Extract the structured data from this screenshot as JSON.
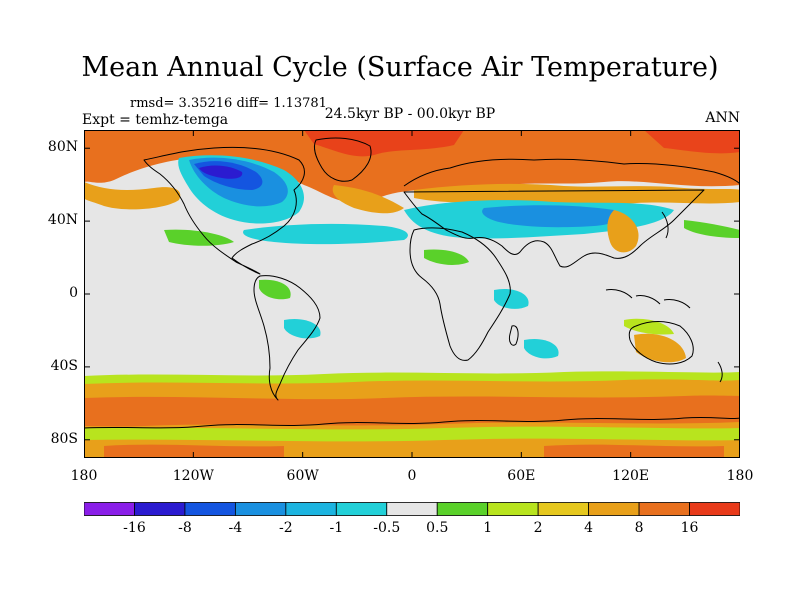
{
  "figure": {
    "title": "Mean Annual Cycle (Surface Air Temperature)",
    "stats": "rmsd= 3.35216 diff= 1.13781",
    "experiment": "Expt = temhz-temga",
    "period": "24.5kyr BP - 00.0kyr BP",
    "season": "ANN"
  },
  "map": {
    "lon_ticks": [
      "180",
      "120W",
      "60W",
      "0",
      "60E",
      "120E",
      "180"
    ],
    "lon_values": [
      -180,
      -120,
      -60,
      0,
      60,
      120,
      180
    ],
    "lat_ticks": [
      "80N",
      "40N",
      "0",
      "40S",
      "80S"
    ],
    "lat_values": [
      80,
      40,
      0,
      -40,
      -80
    ],
    "lat_range": [
      -90,
      90
    ],
    "lon_range": [
      -180,
      180
    ]
  },
  "colorbar": {
    "labels": [
      "-16",
      "-8",
      "-4",
      "-2",
      "-1",
      "-0.5",
      "0.5",
      "1",
      "2",
      "4",
      "8",
      "16"
    ],
    "colors": [
      "#8a1ee8",
      "#2b1bd0",
      "#1455e0",
      "#1a90e0",
      "#1cb4e0",
      "#22d0d8",
      "#e6e6e6",
      "#5ad12a",
      "#b8e41e",
      "#e6c81e",
      "#e8a01a",
      "#e8701e",
      "#e83a1a"
    ]
  },
  "chart_data": {
    "type": "heatmap",
    "title": "Mean Annual Cycle (Surface Air Temperature)",
    "subtitle": "24.5kyr BP - 00.0kyr BP",
    "variable": "Surface Air Temperature difference",
    "contour_levels": [
      -16,
      -8,
      -4,
      -2,
      -1,
      -0.5,
      0.5,
      1,
      2,
      4,
      8,
      16
    ],
    "xlim": [
      -180,
      180
    ],
    "ylim": [
      -90,
      90
    ],
    "rmsd": 3.35216,
    "diff": 1.13781,
    "regions": [
      {
        "lon": [
          -180,
          180
        ],
        "lat": [
          55,
          90
        ],
        "level": "8 to 16"
      },
      {
        "lon": [
          -180,
          180
        ],
        "lat": [
          -75,
          -45
        ],
        "level": "4 to 16"
      },
      {
        "lon": [
          -160,
          -60
        ],
        "lat": [
          45,
          80
        ],
        "level": "-16 to -2"
      },
      {
        "lon": [
          -10,
          130
        ],
        "lat": [
          20,
          50
        ],
        "level": "-2 to -0.5"
      },
      {
        "lon": [
          -180,
          180
        ],
        "lat": [
          -40,
          40
        ],
        "level": "-0.5 to 0.5"
      }
    ]
  }
}
